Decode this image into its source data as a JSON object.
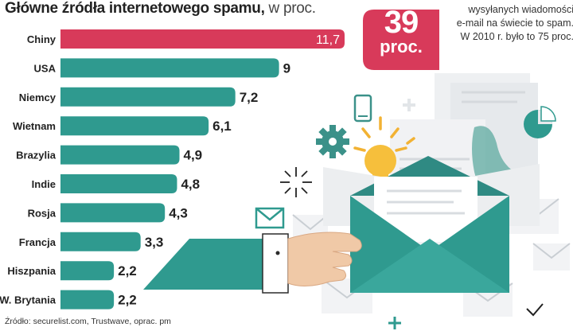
{
  "header": {
    "title_bold": "Główne źródła internetowego spamu,",
    "title_light": " w proc."
  },
  "callout": {
    "number": "39",
    "unit": "proc.",
    "lines": [
      "wysyłanych wiadomości",
      "e-mail na świecie to spam.",
      "W 2010 r. było to 75 proc."
    ],
    "color": "#d83a5a"
  },
  "footer": {
    "source": "Źródło: securelist.com, Trustwave, oprac. pm"
  },
  "colors": {
    "highlight_bar": "#d83a5a",
    "bar": "#2f9a8f",
    "bar_edge": "#2a7f78"
  },
  "chart_data": {
    "type": "bar",
    "orientation": "horizontal",
    "title": "Główne źródła internetowego spamu, w proc.",
    "categories": [
      "Chiny",
      "USA",
      "Niemcy",
      "Wietnam",
      "Brazylia",
      "Indie",
      "Rosja",
      "Francja",
      "Hiszpania",
      "W. Brytania"
    ],
    "values": [
      11.7,
      9,
      7.2,
      6.1,
      4.9,
      4.8,
      4.3,
      3.3,
      2.2,
      2.2
    ],
    "value_labels": [
      "11,7",
      "9",
      "7,2",
      "6,1",
      "4,9",
      "4,8",
      "4,3",
      "3,3",
      "2,2",
      "2,2"
    ],
    "highlight_index": 0,
    "xlim": [
      0,
      11.7
    ],
    "grid": false,
    "legend": "none"
  }
}
